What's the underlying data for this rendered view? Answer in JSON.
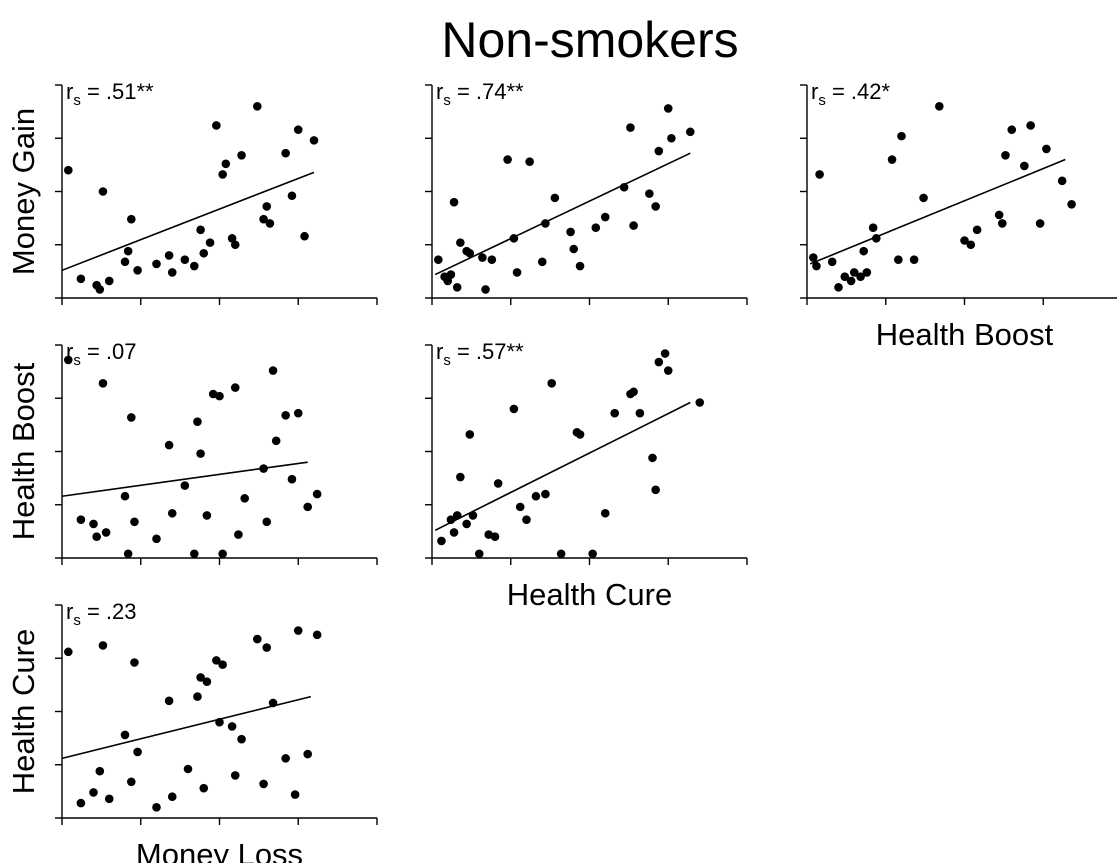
{
  "title": "Non-smokers",
  "chart_data": [
    {
      "type": "scatter",
      "row": 1,
      "col": 1,
      "ylabel": "Money Gain",
      "xlabel": "",
      "annotation": {
        "prefix": "r",
        "subscript": "s",
        "text": " = .51**"
      },
      "xlim": [
        0,
        1
      ],
      "ylim": [
        0,
        1
      ],
      "points": [
        [
          0.02,
          0.6
        ],
        [
          0.06,
          0.09
        ],
        [
          0.11,
          0.06
        ],
        [
          0.12,
          0.04
        ],
        [
          0.13,
          0.5
        ],
        [
          0.15,
          0.08
        ],
        [
          0.2,
          0.17
        ],
        [
          0.21,
          0.22
        ],
        [
          0.22,
          0.37
        ],
        [
          0.24,
          0.13
        ],
        [
          0.3,
          0.16
        ],
        [
          0.34,
          0.2
        ],
        [
          0.35,
          0.12
        ],
        [
          0.39,
          0.18
        ],
        [
          0.42,
          0.15
        ],
        [
          0.44,
          0.32
        ],
        [
          0.45,
          0.21
        ],
        [
          0.47,
          0.26
        ],
        [
          0.49,
          0.81
        ],
        [
          0.51,
          0.58
        ],
        [
          0.52,
          0.63
        ],
        [
          0.54,
          0.28
        ],
        [
          0.55,
          0.25
        ],
        [
          0.57,
          0.67
        ],
        [
          0.62,
          0.9
        ],
        [
          0.64,
          0.37
        ],
        [
          0.65,
          0.43
        ],
        [
          0.66,
          0.35
        ],
        [
          0.71,
          0.68
        ],
        [
          0.73,
          0.48
        ],
        [
          0.75,
          0.79
        ],
        [
          0.77,
          0.29
        ],
        [
          0.8,
          0.74
        ]
      ],
      "fit": [
        [
          0.0,
          0.13
        ],
        [
          0.8,
          0.59
        ]
      ]
    },
    {
      "type": "scatter",
      "row": 1,
      "col": 2,
      "ylabel": "",
      "xlabel": "",
      "annotation": {
        "prefix": "r",
        "subscript": "s",
        "text": " = .74**"
      },
      "xlim": [
        0,
        1
      ],
      "ylim": [
        0,
        1
      ],
      "points": [
        [
          0.02,
          0.18
        ],
        [
          0.04,
          0.1
        ],
        [
          0.05,
          0.08
        ],
        [
          0.06,
          0.11
        ],
        [
          0.07,
          0.45
        ],
        [
          0.08,
          0.05
        ],
        [
          0.09,
          0.26
        ],
        [
          0.11,
          0.22
        ],
        [
          0.12,
          0.21
        ],
        [
          0.16,
          0.19
        ],
        [
          0.17,
          0.04
        ],
        [
          0.19,
          0.18
        ],
        [
          0.24,
          0.65
        ],
        [
          0.26,
          0.28
        ],
        [
          0.27,
          0.12
        ],
        [
          0.31,
          0.64
        ],
        [
          0.35,
          0.17
        ],
        [
          0.36,
          0.35
        ],
        [
          0.39,
          0.47
        ],
        [
          0.44,
          0.31
        ],
        [
          0.45,
          0.23
        ],
        [
          0.47,
          0.15
        ],
        [
          0.52,
          0.33
        ],
        [
          0.55,
          0.38
        ],
        [
          0.61,
          0.52
        ],
        [
          0.63,
          0.8
        ],
        [
          0.64,
          0.34
        ],
        [
          0.69,
          0.49
        ],
        [
          0.71,
          0.43
        ],
        [
          0.72,
          0.69
        ],
        [
          0.75,
          0.89
        ],
        [
          0.76,
          0.75
        ],
        [
          0.82,
          0.78
        ]
      ],
      "fit": [
        [
          0.01,
          0.11
        ],
        [
          0.82,
          0.68
        ]
      ]
    },
    {
      "type": "scatter",
      "row": 1,
      "col": 3,
      "ylabel": "",
      "xlabel": "Health Boost",
      "annotation": {
        "prefix": "r",
        "subscript": "s",
        "text": " = .42*"
      },
      "xlim": [
        0,
        1
      ],
      "ylim": [
        0,
        1
      ],
      "points": [
        [
          0.02,
          0.19
        ],
        [
          0.03,
          0.15
        ],
        [
          0.04,
          0.58
        ],
        [
          0.08,
          0.17
        ],
        [
          0.1,
          0.05
        ],
        [
          0.12,
          0.1
        ],
        [
          0.14,
          0.08
        ],
        [
          0.15,
          0.12
        ],
        [
          0.17,
          0.1
        ],
        [
          0.18,
          0.22
        ],
        [
          0.19,
          0.12
        ],
        [
          0.21,
          0.33
        ],
        [
          0.22,
          0.28
        ],
        [
          0.27,
          0.65
        ],
        [
          0.29,
          0.18
        ],
        [
          0.3,
          0.76
        ],
        [
          0.34,
          0.18
        ],
        [
          0.37,
          0.47
        ],
        [
          0.42,
          0.9
        ],
        [
          0.5,
          0.27
        ],
        [
          0.52,
          0.25
        ],
        [
          0.54,
          0.32
        ],
        [
          0.61,
          0.39
        ],
        [
          0.62,
          0.35
        ],
        [
          0.63,
          0.67
        ],
        [
          0.65,
          0.79
        ],
        [
          0.69,
          0.62
        ],
        [
          0.71,
          0.81
        ],
        [
          0.74,
          0.35
        ],
        [
          0.76,
          0.7
        ],
        [
          0.81,
          0.55
        ],
        [
          0.84,
          0.44
        ]
      ],
      "fit": [
        [
          0.01,
          0.16
        ],
        [
          0.82,
          0.65
        ]
      ]
    },
    {
      "type": "scatter",
      "row": 2,
      "col": 1,
      "ylabel": "Health Boost",
      "xlabel": "",
      "annotation": {
        "prefix": "r",
        "subscript": "s",
        "text": " = .07"
      },
      "xlim": [
        0,
        1
      ],
      "ylim": [
        0,
        1
      ],
      "points": [
        [
          0.02,
          0.93
        ],
        [
          0.06,
          0.18
        ],
        [
          0.1,
          0.16
        ],
        [
          0.11,
          0.1
        ],
        [
          0.13,
          0.82
        ],
        [
          0.14,
          0.12
        ],
        [
          0.2,
          0.29
        ],
        [
          0.21,
          0.02
        ],
        [
          0.22,
          0.66
        ],
        [
          0.23,
          0.17
        ],
        [
          0.3,
          0.09
        ],
        [
          0.34,
          0.53
        ],
        [
          0.35,
          0.21
        ],
        [
          0.39,
          0.34
        ],
        [
          0.42,
          0.02
        ],
        [
          0.43,
          0.64
        ],
        [
          0.44,
          0.49
        ],
        [
          0.46,
          0.2
        ],
        [
          0.48,
          0.77
        ],
        [
          0.5,
          0.76
        ],
        [
          0.51,
          0.02
        ],
        [
          0.55,
          0.8
        ],
        [
          0.56,
          0.11
        ],
        [
          0.58,
          0.28
        ],
        [
          0.64,
          0.42
        ],
        [
          0.65,
          0.17
        ],
        [
          0.67,
          0.88
        ],
        [
          0.68,
          0.55
        ],
        [
          0.71,
          0.67
        ],
        [
          0.73,
          0.37
        ],
        [
          0.75,
          0.68
        ],
        [
          0.78,
          0.24
        ],
        [
          0.81,
          0.3
        ]
      ],
      "fit": [
        [
          0.0,
          0.29
        ],
        [
          0.78,
          0.45
        ]
      ]
    },
    {
      "type": "scatter",
      "row": 2,
      "col": 2,
      "ylabel": "",
      "xlabel": "Health Cure",
      "annotation": {
        "prefix": "r",
        "subscript": "s",
        "text": " = .57**"
      },
      "xlim": [
        0,
        1
      ],
      "ylim": [
        0,
        1
      ],
      "points": [
        [
          0.03,
          0.08
        ],
        [
          0.06,
          0.18
        ],
        [
          0.07,
          0.12
        ],
        [
          0.08,
          0.2
        ],
        [
          0.09,
          0.38
        ],
        [
          0.11,
          0.16
        ],
        [
          0.12,
          0.58
        ],
        [
          0.13,
          0.2
        ],
        [
          0.15,
          0.02
        ],
        [
          0.18,
          0.11
        ],
        [
          0.2,
          0.1
        ],
        [
          0.21,
          0.35
        ],
        [
          0.26,
          0.7
        ],
        [
          0.28,
          0.24
        ],
        [
          0.3,
          0.18
        ],
        [
          0.33,
          0.29
        ],
        [
          0.36,
          0.3
        ],
        [
          0.38,
          0.82
        ],
        [
          0.41,
          0.02
        ],
        [
          0.46,
          0.59
        ],
        [
          0.47,
          0.58
        ],
        [
          0.51,
          0.02
        ],
        [
          0.55,
          0.21
        ],
        [
          0.58,
          0.68
        ],
        [
          0.63,
          0.77
        ],
        [
          0.64,
          0.78
        ],
        [
          0.66,
          0.68
        ],
        [
          0.7,
          0.47
        ],
        [
          0.71,
          0.32
        ],
        [
          0.72,
          0.92
        ],
        [
          0.74,
          0.96
        ],
        [
          0.75,
          0.88
        ],
        [
          0.85,
          0.73
        ]
      ],
      "fit": [
        [
          0.01,
          0.13
        ],
        [
          0.82,
          0.73
        ]
      ]
    },
    {
      "type": "scatter",
      "row": 3,
      "col": 1,
      "ylabel": "Health Cure",
      "xlabel": "Money Loss",
      "annotation": {
        "prefix": "r",
        "subscript": "s",
        "text": " = .23"
      },
      "xlim": [
        0,
        1
      ],
      "ylim": [
        0,
        1
      ],
      "points": [
        [
          0.02,
          0.78
        ],
        [
          0.06,
          0.07
        ],
        [
          0.1,
          0.12
        ],
        [
          0.12,
          0.22
        ],
        [
          0.13,
          0.81
        ],
        [
          0.15,
          0.09
        ],
        [
          0.2,
          0.39
        ],
        [
          0.22,
          0.17
        ],
        [
          0.23,
          0.73
        ],
        [
          0.24,
          0.31
        ],
        [
          0.3,
          0.05
        ],
        [
          0.34,
          0.55
        ],
        [
          0.35,
          0.1
        ],
        [
          0.4,
          0.23
        ],
        [
          0.43,
          0.57
        ],
        [
          0.44,
          0.66
        ],
        [
          0.45,
          0.14
        ],
        [
          0.46,
          0.64
        ],
        [
          0.49,
          0.74
        ],
        [
          0.5,
          0.45
        ],
        [
          0.51,
          0.72
        ],
        [
          0.54,
          0.43
        ],
        [
          0.55,
          0.2
        ],
        [
          0.57,
          0.37
        ],
        [
          0.62,
          0.84
        ],
        [
          0.64,
          0.16
        ],
        [
          0.65,
          0.8
        ],
        [
          0.67,
          0.54
        ],
        [
          0.71,
          0.28
        ],
        [
          0.74,
          0.11
        ],
        [
          0.75,
          0.88
        ],
        [
          0.78,
          0.3
        ],
        [
          0.81,
          0.86
        ]
      ],
      "fit": [
        [
          0.0,
          0.28
        ],
        [
          0.79,
          0.57
        ]
      ]
    }
  ]
}
